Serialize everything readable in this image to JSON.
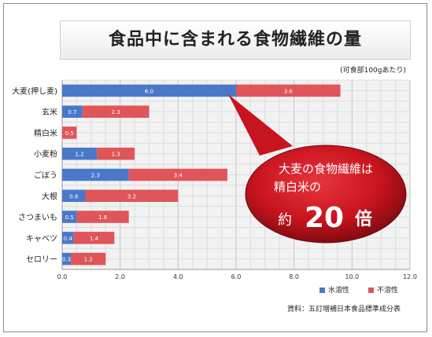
{
  "chart_data": {
    "type": "bar",
    "orientation": "horizontal",
    "stacked": true,
    "title": "食品中に含まれる食物繊維の量",
    "unit_note": "(可食部100gあたり)",
    "source": "資料：五訂増補日本食品標準成分表",
    "categories": [
      "大麦(押し麦)",
      "玄米",
      "精白米",
      "小麦粉",
      "ごぼう",
      "大根",
      "さつまいも",
      "キャベツ",
      "セロリー"
    ],
    "series": [
      {
        "name": "水溶性",
        "color": "#4a78c9",
        "values": [
          6.0,
          0.7,
          0.0,
          1.2,
          2.3,
          0.8,
          0.5,
          0.4,
          0.3
        ]
      },
      {
        "name": "不溶性",
        "color": "#e0555a",
        "values": [
          3.6,
          2.3,
          0.5,
          1.3,
          3.4,
          3.2,
          1.8,
          1.4,
          1.2
        ]
      }
    ],
    "xlim": [
      0,
      12
    ],
    "x_ticks": [
      "0.0",
      "2.0",
      "4.0",
      "6.0",
      "8.0",
      "10.0",
      "12.0"
    ],
    "grid": true,
    "legend_position": "bottom-right",
    "callout": {
      "line1": "大麦の食物繊維は",
      "line2": "精白米の",
      "prefix": "約",
      "number": "20",
      "suffix": "倍",
      "color": "#c8141e"
    }
  }
}
